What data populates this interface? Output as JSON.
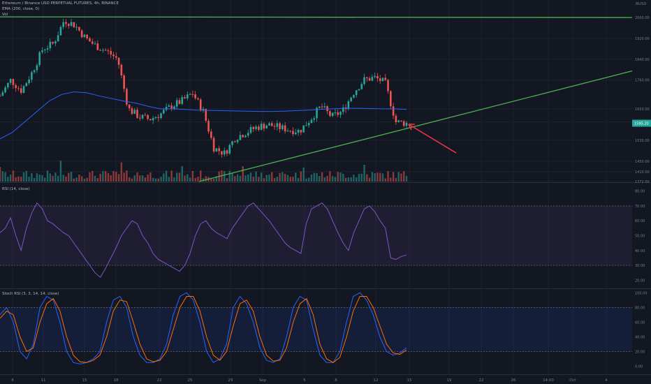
{
  "header": {
    "symbol_line": "Ethereum / Binance USD PERPETUAL FUTURES, 4h, BINANCE",
    "ema_label": "EMA (200, close, 0)",
    "vol_label": "Vol",
    "rsi_label": "RSI (14, close)",
    "stoch_label": "Stoch RSI (3, 3, 14, 14, close)"
  },
  "price_axis": {
    "currency": "BUSD",
    "ticks": [
      "2000.00",
      "1920.00",
      "1840.00",
      "1760.00",
      "1650.00",
      "1600.00",
      "1530.00",
      "1450.00",
      "1410.00",
      "1372.00"
    ],
    "last_price": "1595.20",
    "last_price_color": "#26a69a"
  },
  "rsi_axis": {
    "ticks": [
      "80.00",
      "70.00",
      "60.00",
      "50.00",
      "40.00",
      "30.00",
      "20.00"
    ]
  },
  "stoch_axis": {
    "ticks": [
      "100.00",
      "80.00",
      "60.00",
      "40.00",
      "20.00",
      "0.00"
    ]
  },
  "time_axis": {
    "ticks": [
      "8",
      "11",
      "15",
      "18",
      "22",
      "25",
      "29",
      "Sep",
      "5",
      "8",
      "12",
      "15",
      "19",
      "22",
      "26",
      "14:00",
      "Oct",
      "4"
    ]
  },
  "colors": {
    "up": "#26a69a",
    "down": "#ef5350",
    "ema": "#2962ff",
    "trendline": "#4caf50",
    "arrow": "#f23645",
    "rsi": "#7e57c2",
    "stoch_k": "#2962ff",
    "stoch_d": "#ff6d00",
    "grid": "#1e222d"
  },
  "chart_data": [
    {
      "type": "candlestick",
      "title": "Ethereum / Binance USD PERPETUAL FUTURES, 4h, BINANCE",
      "ylim": [
        1372,
        2045
      ],
      "close_path": [
        {
          "date": "Aug 7",
          "close": 1700
        },
        {
          "date": "Aug 8",
          "close": 1760
        },
        {
          "date": "Aug 9",
          "close": 1720
        },
        {
          "date": "Aug 10",
          "close": 1790
        },
        {
          "date": "Aug 11",
          "close": 1880
        },
        {
          "date": "Aug 12",
          "close": 1900
        },
        {
          "date": "Aug 13",
          "close": 1990
        },
        {
          "date": "Aug 14",
          "close": 1970
        },
        {
          "date": "Aug 15",
          "close": 1920
        },
        {
          "date": "Aug 16",
          "close": 1890
        },
        {
          "date": "Aug 17",
          "close": 1870
        },
        {
          "date": "Aug 18",
          "close": 1840
        },
        {
          "date": "Aug 19",
          "close": 1650
        },
        {
          "date": "Aug 20",
          "close": 1620
        },
        {
          "date": "Aug 21",
          "close": 1610
        },
        {
          "date": "Aug 22",
          "close": 1630
        },
        {
          "date": "Aug 23",
          "close": 1660
        },
        {
          "date": "Aug 24",
          "close": 1680
        },
        {
          "date": "Aug 25",
          "close": 1710
        },
        {
          "date": "Aug 26",
          "close": 1640
        },
        {
          "date": "Aug 27",
          "close": 1500
        },
        {
          "date": "Aug 28",
          "close": 1480
        },
        {
          "date": "Aug 29",
          "close": 1540
        },
        {
          "date": "Aug 30",
          "close": 1560
        },
        {
          "date": "Aug 31",
          "close": 1580
        },
        {
          "date": "Sep 1",
          "close": 1590
        },
        {
          "date": "Sep 2",
          "close": 1580
        },
        {
          "date": "Sep 3",
          "close": 1570
        },
        {
          "date": "Sep 4",
          "close": 1565
        },
        {
          "date": "Sep 5",
          "close": 1610
        },
        {
          "date": "Sep 6",
          "close": 1660
        },
        {
          "date": "Sep 7",
          "close": 1620
        },
        {
          "date": "Sep 8",
          "close": 1640
        },
        {
          "date": "Sep 9",
          "close": 1710
        },
        {
          "date": "Sep 10",
          "close": 1760
        },
        {
          "date": "Sep 11",
          "close": 1770
        },
        {
          "date": "Sep 12",
          "close": 1750
        },
        {
          "date": "Sep 13",
          "close": 1600
        },
        {
          "date": "Sep 14",
          "close": 1595
        }
      ],
      "ema200": [
        1535,
        1560,
        1600,
        1640,
        1680,
        1705,
        1715,
        1712,
        1700,
        1690,
        1680,
        1672,
        1660,
        1650,
        1650,
        1648,
        1645,
        1644,
        1643,
        1642,
        1641,
        1640,
        1640,
        1641,
        1643,
        1645,
        1648,
        1650,
        1652,
        1652,
        1651,
        1650,
        1650,
        1648
      ],
      "horizontal_line": 2002,
      "ascending_trendline": {
        "from": {
          "date": "Aug 25",
          "price": 1372
        },
        "to": {
          "date": "Oct 5",
          "price": 1795
        }
      }
    },
    {
      "type": "line",
      "title": "RSI (14, close)",
      "ylim": [
        15,
        85
      ],
      "bands": [
        30,
        70
      ],
      "values": [
        52,
        55,
        62,
        50,
        40,
        55,
        65,
        72,
        68,
        60,
        58,
        55,
        52,
        50,
        45,
        40,
        35,
        30,
        25,
        22,
        28,
        35,
        42,
        50,
        55,
        60,
        58,
        50,
        45,
        38,
        34,
        32,
        30,
        28,
        26,
        30,
        38,
        50,
        58,
        60,
        55,
        52,
        50,
        48,
        55,
        60,
        65,
        70,
        72,
        68,
        64,
        60,
        55,
        50,
        45,
        42,
        40,
        38,
        58,
        68,
        70,
        72,
        68,
        60,
        52,
        45,
        40,
        52,
        60,
        68,
        70,
        66,
        60,
        55,
        35,
        34,
        36,
        37
      ]
    },
    {
      "type": "line",
      "title": "Stoch RSI (3, 3, 14, 14, close)",
      "ylim": [
        -10,
        105
      ],
      "bands": [
        20,
        80
      ],
      "series": [
        {
          "name": "K",
          "values": [
            70,
            80,
            60,
            20,
            10,
            30,
            80,
            95,
            90,
            60,
            20,
            5,
            3,
            5,
            10,
            20,
            60,
            90,
            95,
            80,
            40,
            15,
            5,
            5,
            10,
            30,
            70,
            95,
            100,
            90,
            60,
            20,
            5,
            10,
            30,
            80,
            95,
            85,
            60,
            25,
            8,
            5,
            10,
            40,
            80,
            95,
            90,
            50,
            15,
            5,
            5,
            20,
            60,
            95,
            100,
            90,
            70,
            40,
            20,
            15,
            18,
            25
          ]
        },
        {
          "name": "D",
          "values": [
            65,
            75,
            70,
            40,
            20,
            25,
            60,
            85,
            92,
            75,
            40,
            15,
            6,
            5,
            8,
            15,
            40,
            75,
            90,
            88,
            60,
            30,
            10,
            6,
            8,
            20,
            50,
            80,
            95,
            95,
            75,
            40,
            15,
            8,
            20,
            55,
            85,
            90,
            75,
            40,
            15,
            7,
            8,
            25,
            60,
            85,
            92,
            70,
            30,
            10,
            5,
            12,
            40,
            75,
            95,
            95,
            80,
            55,
            30,
            18,
            16,
            22
          ]
        }
      ]
    }
  ]
}
